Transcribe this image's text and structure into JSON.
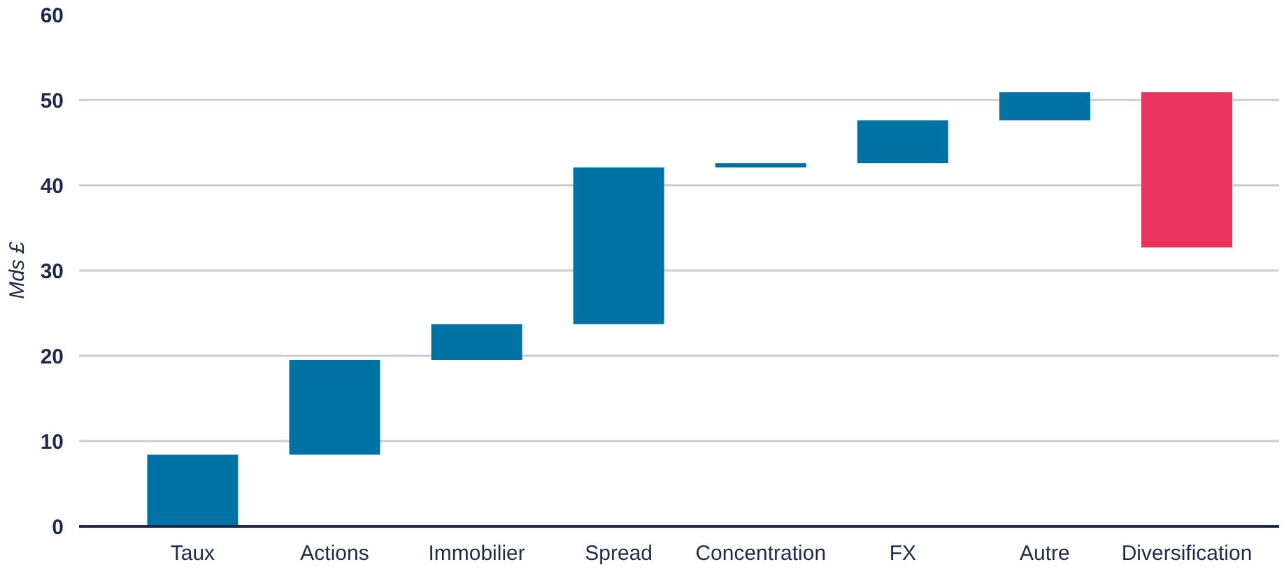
{
  "chart_data": {
    "type": "bar",
    "ylabel": "Mds £",
    "categories": [
      "Taux",
      "Actions",
      "Immobilier",
      "Spread",
      "Concentration",
      "FX",
      "Autre",
      "Diversification"
    ],
    "values": [
      8.4,
      11.1,
      4.2,
      18.4,
      0.5,
      5.0,
      3.3,
      -18.2
    ],
    "base": [
      0,
      8.4,
      19.5,
      23.7,
      42.1,
      42.6,
      47.6,
      50.9
    ],
    "colors": [
      "#0072a3",
      "#0072a3",
      "#0072a3",
      "#0072a3",
      "#0072a3",
      "#0072a3",
      "#0072a3",
      "#e8345e"
    ],
    "ylim": [
      0,
      60
    ],
    "yticks": [
      0,
      10,
      20,
      30,
      40,
      50,
      60
    ],
    "grid": "y"
  }
}
